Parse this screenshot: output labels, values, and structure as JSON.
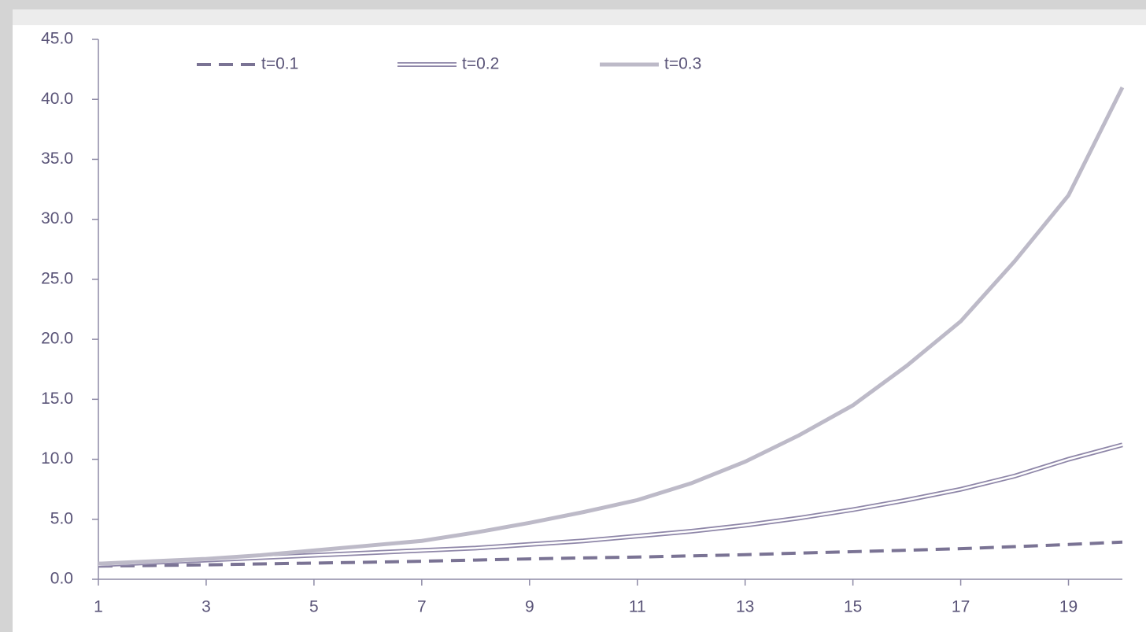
{
  "chart_data": {
    "type": "line",
    "x": [
      1,
      2,
      3,
      4,
      5,
      6,
      7,
      8,
      9,
      10,
      11,
      12,
      13,
      14,
      15,
      16,
      17,
      18,
      19,
      20
    ],
    "series": [
      {
        "name": "t=0.1",
        "color": "#7a7394",
        "style": "dashed",
        "values": [
          1.1,
          1.15,
          1.2,
          1.28,
          1.35,
          1.42,
          1.5,
          1.6,
          1.7,
          1.78,
          1.85,
          1.95,
          2.05,
          2.18,
          2.3,
          2.42,
          2.55,
          2.72,
          2.9,
          3.1
        ]
      },
      {
        "name": "t=0.2",
        "color": "#8e86a8",
        "style": "double",
        "values": [
          1.2,
          1.4,
          1.6,
          1.8,
          2.0,
          2.2,
          2.4,
          2.6,
          2.9,
          3.2,
          3.6,
          4.0,
          4.5,
          5.1,
          5.8,
          6.6,
          7.5,
          8.6,
          10.0,
          11.2
        ]
      },
      {
        "name": "t=0.3",
        "color": "#bdbac8",
        "style": "solid",
        "values": [
          1.3,
          1.5,
          1.7,
          2.0,
          2.4,
          2.8,
          3.2,
          3.9,
          4.7,
          5.6,
          6.6,
          8.0,
          9.8,
          12.0,
          14.5,
          17.8,
          21.5,
          26.5,
          32.0,
          41.0
        ]
      }
    ],
    "xlim": [
      1,
      20
    ],
    "xticks": [
      1,
      3,
      5,
      7,
      9,
      11,
      13,
      15,
      17,
      19
    ],
    "ylim": [
      0,
      45
    ],
    "yticks": [
      {
        "value": 0,
        "label": "0.0"
      },
      {
        "value": 5,
        "label": "5.0"
      },
      {
        "value": 10,
        "label": "10.0"
      },
      {
        "value": 15,
        "label": "15.0"
      },
      {
        "value": 20,
        "label": "20.0"
      },
      {
        "value": 25,
        "label": "25.0"
      },
      {
        "value": 30,
        "label": "30.0"
      },
      {
        "value": 35,
        "label": "35.0"
      },
      {
        "value": 40,
        "label": "40.0"
      },
      {
        "value": 45,
        "label": "45.0"
      }
    ],
    "grid": false,
    "legend": "top"
  }
}
